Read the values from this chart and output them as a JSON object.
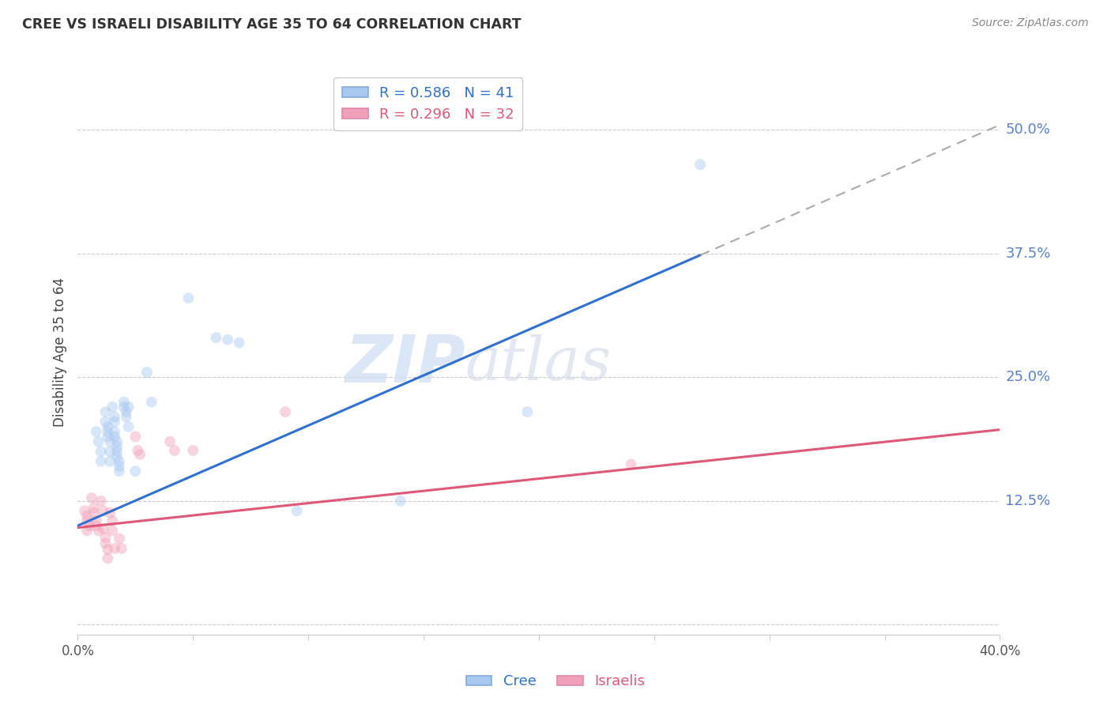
{
  "title": "CREE VS ISRAELI DISABILITY AGE 35 TO 64 CORRELATION CHART",
  "source": "Source: ZipAtlas.com",
  "ylabel": "Disability Age 35 to 64",
  "xlim": [
    0.0,
    0.4
  ],
  "ylim": [
    -0.01,
    0.56
  ],
  "yticks": [
    0.0,
    0.125,
    0.25,
    0.375,
    0.5
  ],
  "ytick_labels": [
    "",
    "12.5%",
    "25.0%",
    "37.5%",
    "50.0%"
  ],
  "xticks": [
    0.0,
    0.05,
    0.1,
    0.15,
    0.2,
    0.25,
    0.3,
    0.35,
    0.4
  ],
  "xtick_labels": [
    "0.0%",
    "",
    "",
    "",
    "",
    "",
    "",
    "",
    "40.0%"
  ],
  "cree_color": "#a8c8f0",
  "israeli_color": "#f0a0b8",
  "cree_line_color": "#3070d0",
  "israeli_line_color": "#e05878",
  "legend_R_cree": "R = 0.586   N = 41",
  "legend_R_israeli": "R = 0.296   N = 32",
  "cree_scatter": [
    [
      0.008,
      0.195
    ],
    [
      0.009,
      0.185
    ],
    [
      0.01,
      0.175
    ],
    [
      0.01,
      0.165
    ],
    [
      0.012,
      0.215
    ],
    [
      0.012,
      0.205
    ],
    [
      0.013,
      0.2
    ],
    [
      0.013,
      0.195
    ],
    [
      0.013,
      0.19
    ],
    [
      0.014,
      0.185
    ],
    [
      0.014,
      0.175
    ],
    [
      0.014,
      0.165
    ],
    [
      0.015,
      0.22
    ],
    [
      0.016,
      0.21
    ],
    [
      0.016,
      0.205
    ],
    [
      0.016,
      0.195
    ],
    [
      0.016,
      0.19
    ],
    [
      0.017,
      0.185
    ],
    [
      0.017,
      0.18
    ],
    [
      0.017,
      0.175
    ],
    [
      0.017,
      0.17
    ],
    [
      0.018,
      0.165
    ],
    [
      0.018,
      0.16
    ],
    [
      0.018,
      0.155
    ],
    [
      0.02,
      0.225
    ],
    [
      0.02,
      0.22
    ],
    [
      0.021,
      0.215
    ],
    [
      0.021,
      0.21
    ],
    [
      0.022,
      0.22
    ],
    [
      0.022,
      0.2
    ],
    [
      0.03,
      0.255
    ],
    [
      0.032,
      0.225
    ],
    [
      0.048,
      0.33
    ],
    [
      0.06,
      0.29
    ],
    [
      0.065,
      0.288
    ],
    [
      0.07,
      0.285
    ],
    [
      0.095,
      0.115
    ],
    [
      0.14,
      0.125
    ],
    [
      0.195,
      0.215
    ],
    [
      0.27,
      0.465
    ],
    [
      0.025,
      0.155
    ]
  ],
  "israeli_scatter": [
    [
      0.003,
      0.115
    ],
    [
      0.004,
      0.11
    ],
    [
      0.004,
      0.105
    ],
    [
      0.005,
      0.1
    ],
    [
      0.006,
      0.128
    ],
    [
      0.007,
      0.118
    ],
    [
      0.007,
      0.113
    ],
    [
      0.008,
      0.105
    ],
    [
      0.008,
      0.1
    ],
    [
      0.009,
      0.095
    ],
    [
      0.01,
      0.125
    ],
    [
      0.011,
      0.115
    ],
    [
      0.011,
      0.097
    ],
    [
      0.012,
      0.088
    ],
    [
      0.012,
      0.082
    ],
    [
      0.013,
      0.076
    ],
    [
      0.014,
      0.113
    ],
    [
      0.015,
      0.105
    ],
    [
      0.015,
      0.095
    ],
    [
      0.016,
      0.077
    ],
    [
      0.018,
      0.087
    ],
    [
      0.019,
      0.077
    ],
    [
      0.025,
      0.19
    ],
    [
      0.026,
      0.176
    ],
    [
      0.027,
      0.172
    ],
    [
      0.04,
      0.185
    ],
    [
      0.042,
      0.176
    ],
    [
      0.05,
      0.176
    ],
    [
      0.09,
      0.215
    ],
    [
      0.24,
      0.162
    ],
    [
      0.004,
      0.095
    ],
    [
      0.013,
      0.067
    ]
  ],
  "cree_line": {
    "x0": 0.0,
    "y0": 0.1,
    "x1": 0.4,
    "y1": 0.505
  },
  "cree_line_solid_end": 0.27,
  "cree_line_dash_color": "#aaaaaa",
  "israeli_line": {
    "x0": 0.0,
    "y0": 0.098,
    "x1": 0.4,
    "y1": 0.197
  },
  "background_color": "#ffffff",
  "grid_color": "#cccccc",
  "tick_label_color_right": "#5580d8",
  "tick_label_color_bottom": "#555555",
  "watermark_zip": "ZIP",
  "watermark_atlas": "atlas",
  "marker_size": 100,
  "marker_alpha": 0.45,
  "legend_cree_color": "#a8c8f0",
  "legend_israeli_color": "#f0a0b8",
  "legend_cree_text_color": "#3070d0",
  "legend_israeli_text_color": "#e05878"
}
